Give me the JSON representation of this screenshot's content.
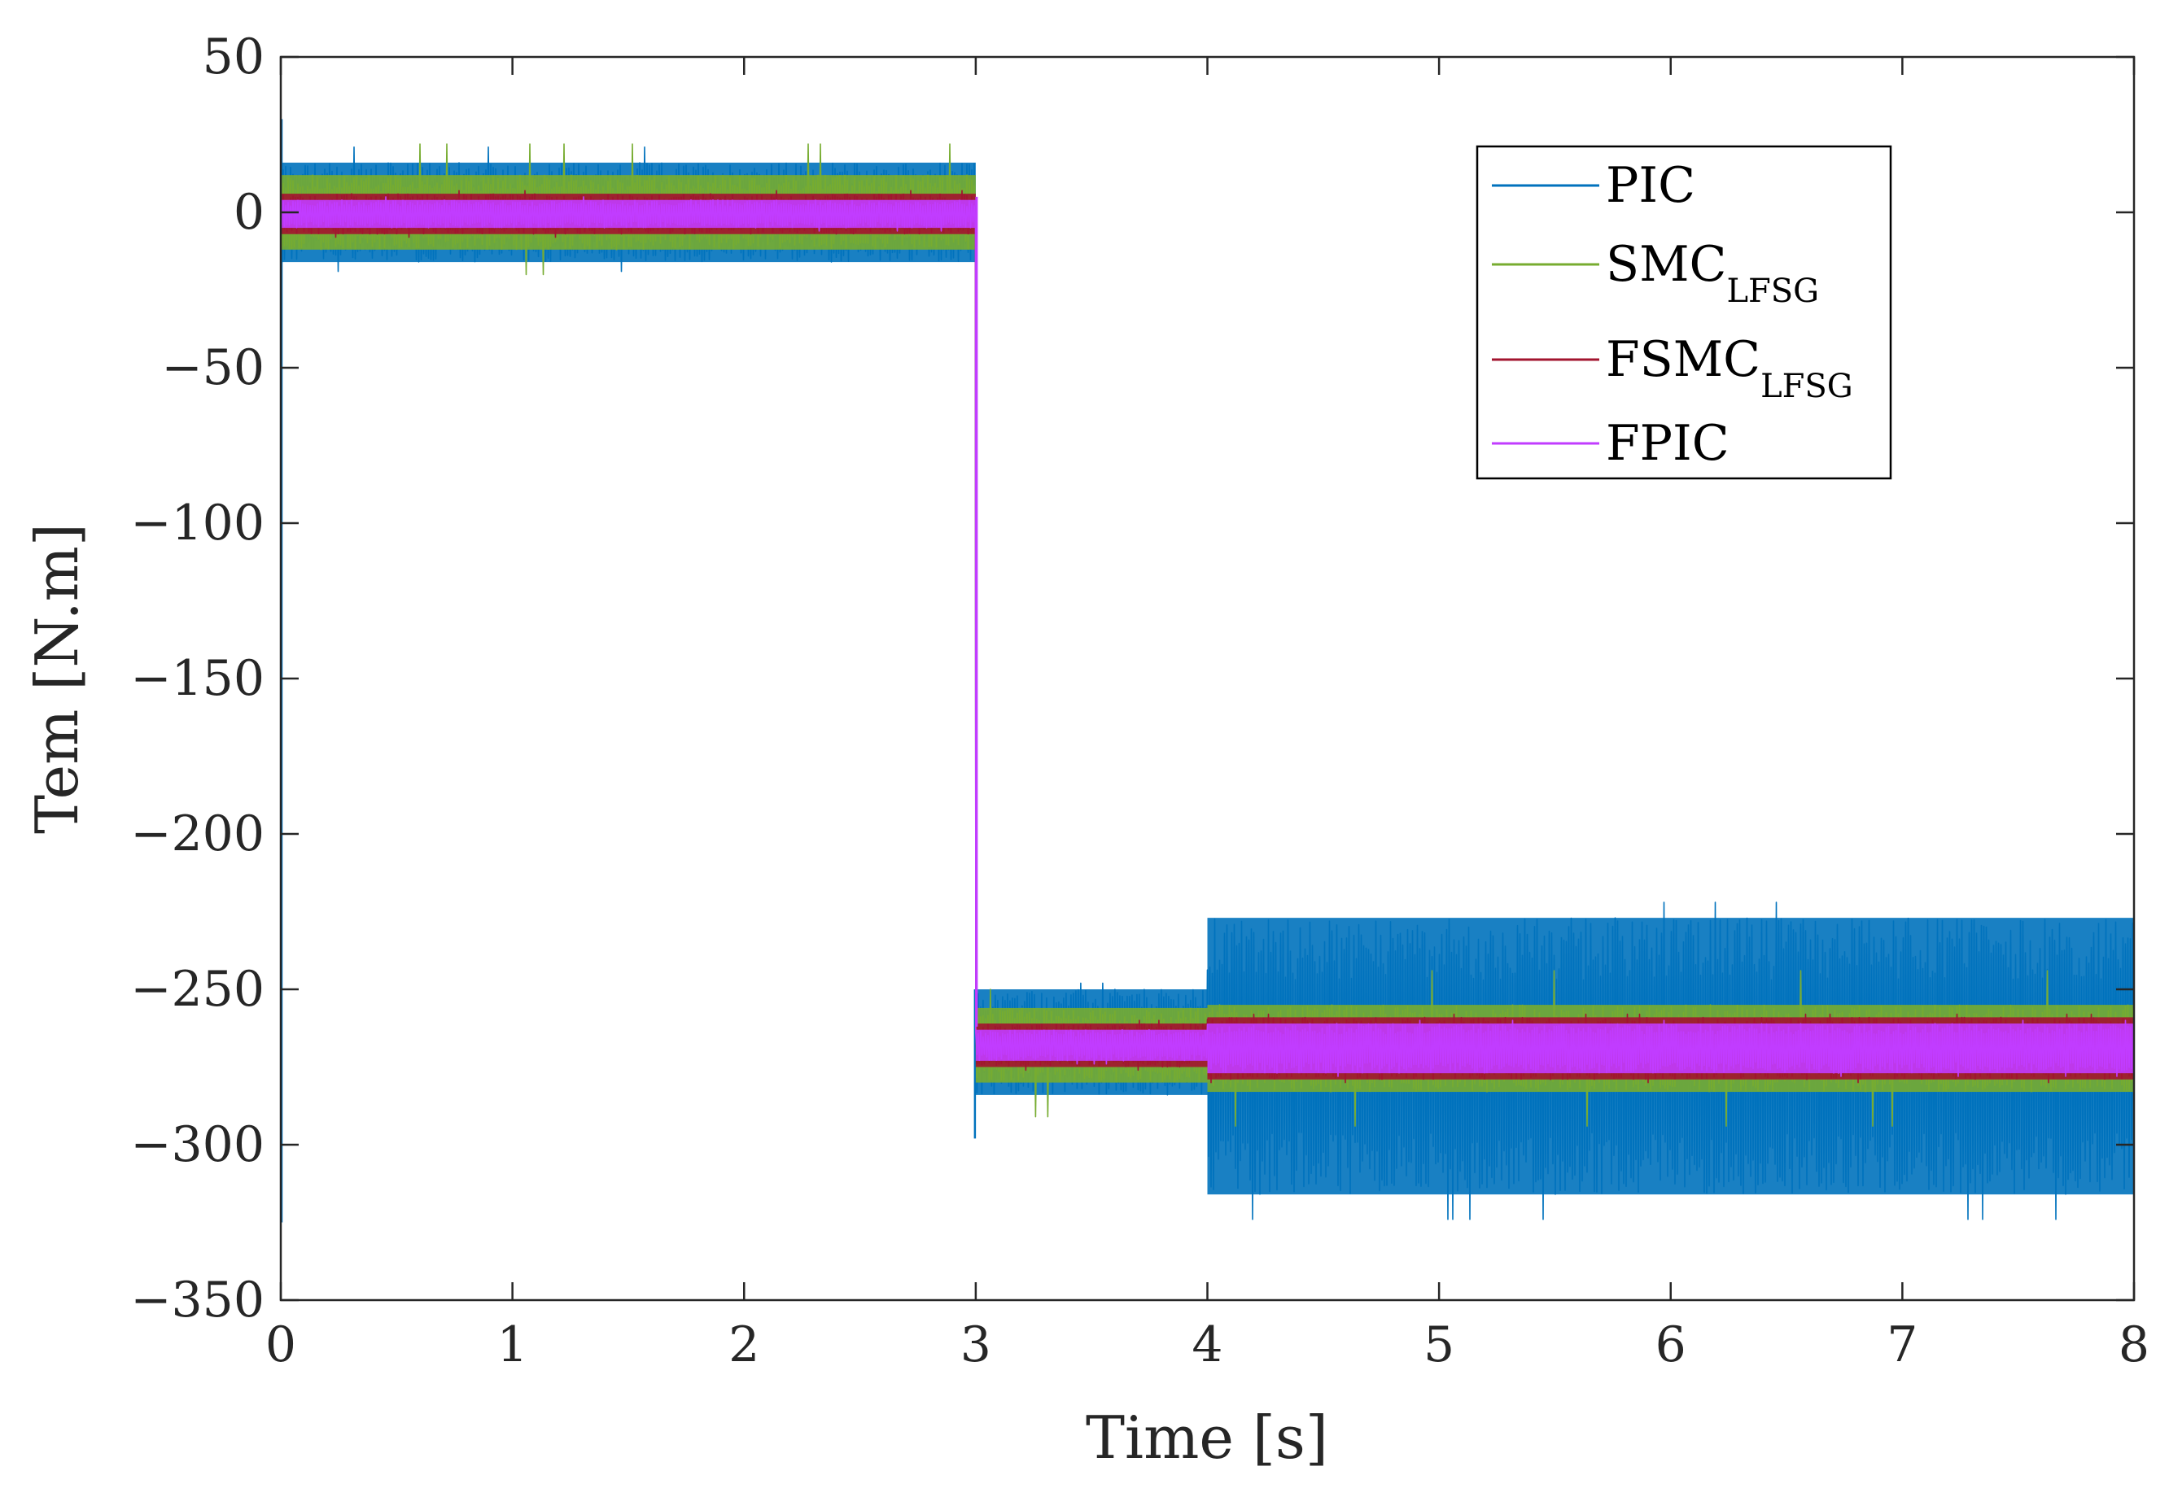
{
  "chart_data": {
    "type": "line",
    "title": "",
    "xlabel": "Time [s]",
    "ylabel": "Tem [N.m]",
    "xlim": [
      0,
      8
    ],
    "ylim": [
      -350,
      50
    ],
    "xticks": [
      0,
      1,
      2,
      3,
      4,
      5,
      6,
      7,
      8
    ],
    "yticks": [
      50,
      0,
      -50,
      -100,
      -150,
      -200,
      -250,
      -300,
      -350
    ],
    "xtick_labels": [
      "0",
      "1",
      "2",
      "3",
      "4",
      "5",
      "6",
      "7",
      "8"
    ],
    "ytick_labels": [
      "50",
      "0",
      "−50",
      "−100",
      "−150",
      "−200",
      "−250",
      "−300",
      "−350"
    ],
    "grid": false,
    "legend_position": "top-right",
    "step_time": 3,
    "load_change_time": 4,
    "series": [
      {
        "name": "PIC",
        "legend_main": "PIC",
        "legend_sub": "",
        "color": "#0072BD",
        "start_spike": [
          30,
          -325
        ],
        "step_spike": -298,
        "segments": [
          {
            "x": [
              0,
              3
            ],
            "center": 0,
            "band": [
              -16,
              16
            ],
            "extreme": [
              -19,
              21
            ]
          },
          {
            "x": [
              3,
              4
            ],
            "center": -268,
            "band": [
              -284,
              -250
            ],
            "extreme": [
              -287,
              -248
            ]
          },
          {
            "x": [
              4,
              8
            ],
            "center": -271,
            "band": [
              -316,
              -227
            ],
            "extreme": [
              -324,
              -222
            ]
          }
        ]
      },
      {
        "name": "SMC_LFSG",
        "legend_main": "SMC",
        "legend_sub": "LFSG",
        "color": "#77AC30",
        "segments": [
          {
            "x": [
              0,
              3
            ],
            "center": 0,
            "band": [
              -12,
              12
            ],
            "extreme": [
              -20,
              22
            ]
          },
          {
            "x": [
              3,
              4
            ],
            "center": -268,
            "band": [
              -280,
              -256
            ],
            "extreme": [
              -291,
              -250
            ]
          },
          {
            "x": [
              4,
              8
            ],
            "center": -269,
            "band": [
              -283,
              -255
            ],
            "extreme": [
              -294,
              -244
            ]
          }
        ]
      },
      {
        "name": "FSMC_LFSG",
        "legend_main": "FSMC",
        "legend_sub": "LFSG",
        "color": "#A2142F",
        "segments": [
          {
            "x": [
              0,
              3
            ],
            "center": 0,
            "band": [
              -7,
              6
            ],
            "extreme": [
              -8,
              7
            ]
          },
          {
            "x": [
              3,
              4
            ],
            "center": -268,
            "band": [
              -275,
              -261
            ],
            "extreme": [
              -276,
              -260
            ]
          },
          {
            "x": [
              4,
              8
            ],
            "center": -269,
            "band": [
              -279,
              -259
            ],
            "extreme": [
              -280,
              -258
            ]
          }
        ]
      },
      {
        "name": "FPIC",
        "legend_main": "FPIC",
        "legend_sub": "",
        "color": "#C13CFF",
        "segments": [
          {
            "x": [
              0,
              3
            ],
            "center": 0,
            "band": [
              -5,
              4
            ],
            "extreme": [
              -6,
              5
            ]
          },
          {
            "x": [
              3,
              4
            ],
            "center": -268,
            "band": [
              -273,
              -263
            ],
            "extreme": [
              -274,
              -262
            ]
          },
          {
            "x": [
              4,
              8
            ],
            "center": -269,
            "band": [
              -277,
              -261
            ],
            "extreme": [
              -278,
              -260
            ]
          }
        ]
      }
    ]
  }
}
